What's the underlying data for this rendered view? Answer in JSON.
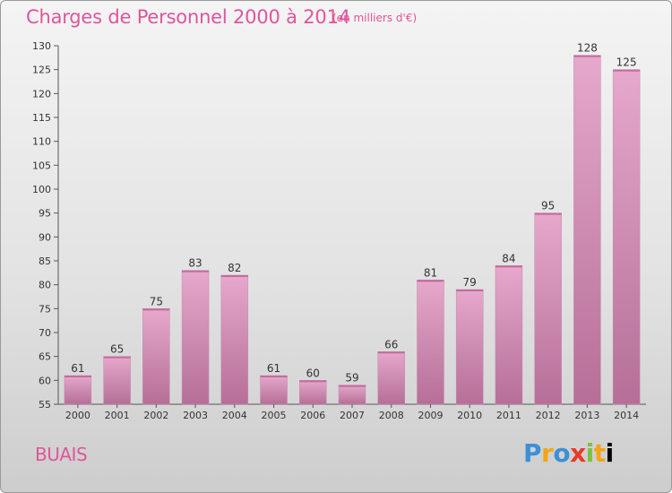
{
  "chart_data": {
    "type": "bar",
    "title": "Charges de Personnel 2000 à 2014",
    "subtitle": "(en milliers d'€)",
    "categories": [
      "2000",
      "2001",
      "2002",
      "2003",
      "2004",
      "2005",
      "2006",
      "2007",
      "2008",
      "2009",
      "2010",
      "2011",
      "2012",
      "2013",
      "2014"
    ],
    "values": [
      61,
      65,
      75,
      83,
      82,
      61,
      60,
      59,
      66,
      81,
      79,
      84,
      95,
      128,
      125
    ],
    "ylim": [
      55,
      130
    ],
    "yticks": [
      55,
      60,
      65,
      70,
      75,
      80,
      85,
      90,
      95,
      100,
      105,
      110,
      115,
      120,
      125,
      130
    ],
    "grid": false,
    "bar_color": "#d98ab6",
    "bar_color_light": "#e6a8cc",
    "bar_color_dark": "#b56f98"
  },
  "commune": "BUAIS",
  "logo": {
    "letters": [
      "P",
      "r",
      "o",
      "x",
      "i",
      "t",
      "i"
    ]
  },
  "colors": {
    "title": "#e0559a"
  }
}
